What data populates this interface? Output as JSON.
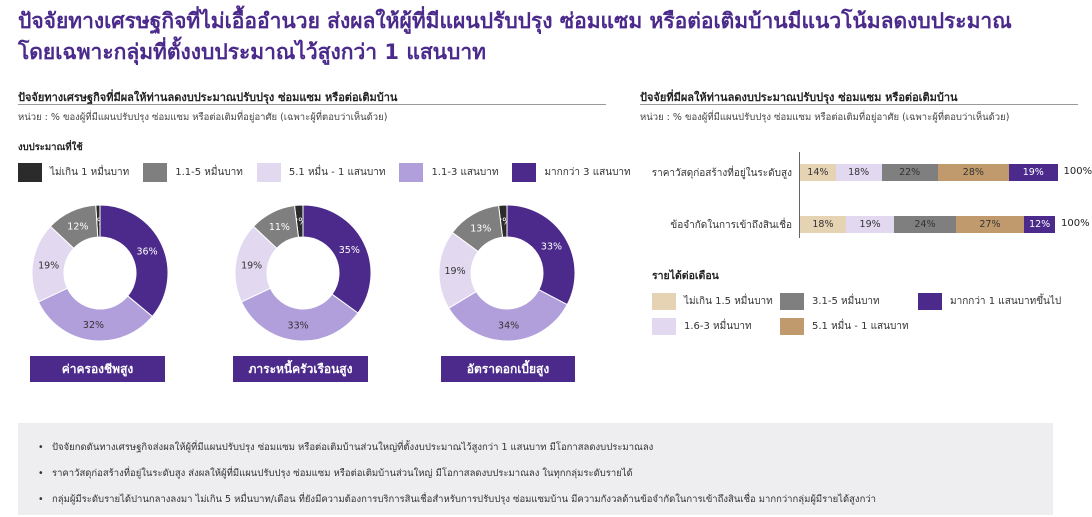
{
  "headline": {
    "line1": "ปัจจัยทางเศรษฐกิจที่ไม่เอื้ออำนวย ส่งผลให้ผู้ที่มีแผนปรับปรุง ซ่อมแซม หรือต่อเติมบ้านมีแนวโน้มลดงบประมาณ",
    "line2": "โดยเฉพาะกลุ่มที่ตั้งงบประมาณไว้สูงกว่า 1 แสนบาท"
  },
  "left_section": {
    "title": "ปัจจัยทางเศรษฐกิจที่มีผลให้ท่านลดงบประมาณปรับปรุง ซ่อมแซม หรือต่อเติมบ้าน",
    "unit": "หน่วย : % ของผู้ที่มีแผนปรับปรุง ซ่อมแซม หรือต่อเติมที่อยู่อาศัย (เฉพาะผู้ที่ตอบว่าเห็นด้วย)",
    "legend_title": "งบประมาณที่ใช้"
  },
  "right_section": {
    "title": "ปัจจัยที่มีผลให้ท่านลดงบประมาณปรับปรุง ซ่อมแซม หรือต่อเติมบ้าน",
    "unit": "หน่วย : % ของผู้ที่มีแผนปรับปรุง ซ่อมแซม หรือต่อเติมที่อยู่อาศัย (เฉพาะผู้ที่ตอบว่าเห็นด้วย)",
    "income_title": "รายได้ต่อเดือน"
  },
  "colors": {
    "budget": [
      "#2b2b2b",
      "#7f7f7f",
      "#e2d9f1",
      "#b19fdb",
      "#4b2a8c"
    ],
    "income": [
      "#e6d3b3",
      "#7f7f7f",
      "#4b2a8c",
      "#e2d9f1",
      "#c09a6c"
    ],
    "accent": "#4b2a8c"
  },
  "chart_data": [
    {
      "type": "pie",
      "title": "ค่าครองชีพสูง",
      "categories": [
        "ไม่เกิน 1 หมื่นบาท",
        "1.1-5 หมื่นบาท",
        "5.1 หมื่น - 1 แสนบาท",
        "1.1-3 แสนบาท",
        "มากกว่า 3 แสนบาท"
      ],
      "values": [
        1,
        12,
        19,
        32,
        36
      ],
      "labels": [
        "1%",
        "12%",
        "19%",
        "32%",
        "36%"
      ]
    },
    {
      "type": "pie",
      "title": "ภาระหนี้ครัวเรือนสูง",
      "categories": [
        "ไม่เกิน 1 หมื่นบาท",
        "1.1-5 หมื่นบาท",
        "5.1 หมื่น - 1 แสนบาท",
        "1.1-3 แสนบาท",
        "มากกว่า 3 แสนบาท"
      ],
      "values": [
        2,
        11,
        19,
        33,
        35
      ],
      "labels": [
        "2%",
        "11%",
        "19%",
        "33%",
        "35%"
      ]
    },
    {
      "type": "pie",
      "title": "อัตราดอกเบี้ยสูง",
      "categories": [
        "ไม่เกิน 1 หมื่นบาท",
        "1.1-5 หมื่นบาท",
        "5.1 หมื่น - 1 แสนบาท",
        "1.1-3 แสนบาท",
        "มากกว่า 3 แสนบาท"
      ],
      "values": [
        2,
        13,
        19,
        34,
        33
      ],
      "labels": [
        "2%",
        "13%",
        "19%",
        "34%",
        "33%"
      ]
    },
    {
      "type": "bar",
      "orientation": "horizontal-stacked",
      "categories": [
        "ราคาวัสดุก่อสร้างที่อยู่ในระดับสูง",
        "ข้อจำกัดในการเข้าถึงสินเชื่อ"
      ],
      "series": [
        {
          "name": "ไม่เกิน 1.5 หมื่นบาท",
          "values": [
            14,
            18
          ],
          "labels": [
            "14%",
            "18%"
          ]
        },
        {
          "name": "1.6-3 หมื่นบาท",
          "values": [
            18,
            19
          ],
          "labels": [
            "18%",
            "19%"
          ]
        },
        {
          "name": "3.1-5 หมื่นบาท",
          "values": [
            22,
            24
          ],
          "labels": [
            "22%",
            "24%"
          ]
        },
        {
          "name": "5.1 หมื่น - 1 แสนบาท",
          "values": [
            28,
            27
          ],
          "labels": [
            "28%",
            "27%"
          ]
        },
        {
          "name": "มากกว่า 1 แสนบาทขึ้นไป",
          "values": [
            19,
            12
          ],
          "labels": [
            "19%",
            "12%"
          ]
        }
      ],
      "totals": [
        "100%",
        "100%"
      ]
    }
  ],
  "notes": [
    "ปัจจัยกดดันทางเศรษฐกิจส่งผลให้ผู้ที่มีแผนปรับปรุง ซ่อมแซม หรือต่อเติมบ้านส่วนใหญ่ที่ตั้งงบประมาณไว้สูงกว่า 1 แสนบาท มีโอกาสลดงบประมาณลง",
    "ราคาวัสดุก่อสร้างที่อยู่ในระดับสูง ส่งผลให้ผู้ที่มีแผนปรับปรุง ซ่อมแซม หรือต่อเติมบ้านส่วนใหญ่ มีโอกาสลดงบประมาณลง ในทุกกลุ่มระดับรายได้",
    "กลุ่มผู้มีระดับรายได้ปานกลางลงมา ไม่เกิน 5 หมื่นบาท/เดือน ที่ยังมีความต้องการบริการสินเชื่อสำหรับการปรับปรุง ซ่อมแซมบ้าน มีความกังวลด้านข้อจำกัดในการเข้าถึงสินเชื่อ มากกว่ากลุ่มผู้มีรายได้สูงกว่า"
  ]
}
